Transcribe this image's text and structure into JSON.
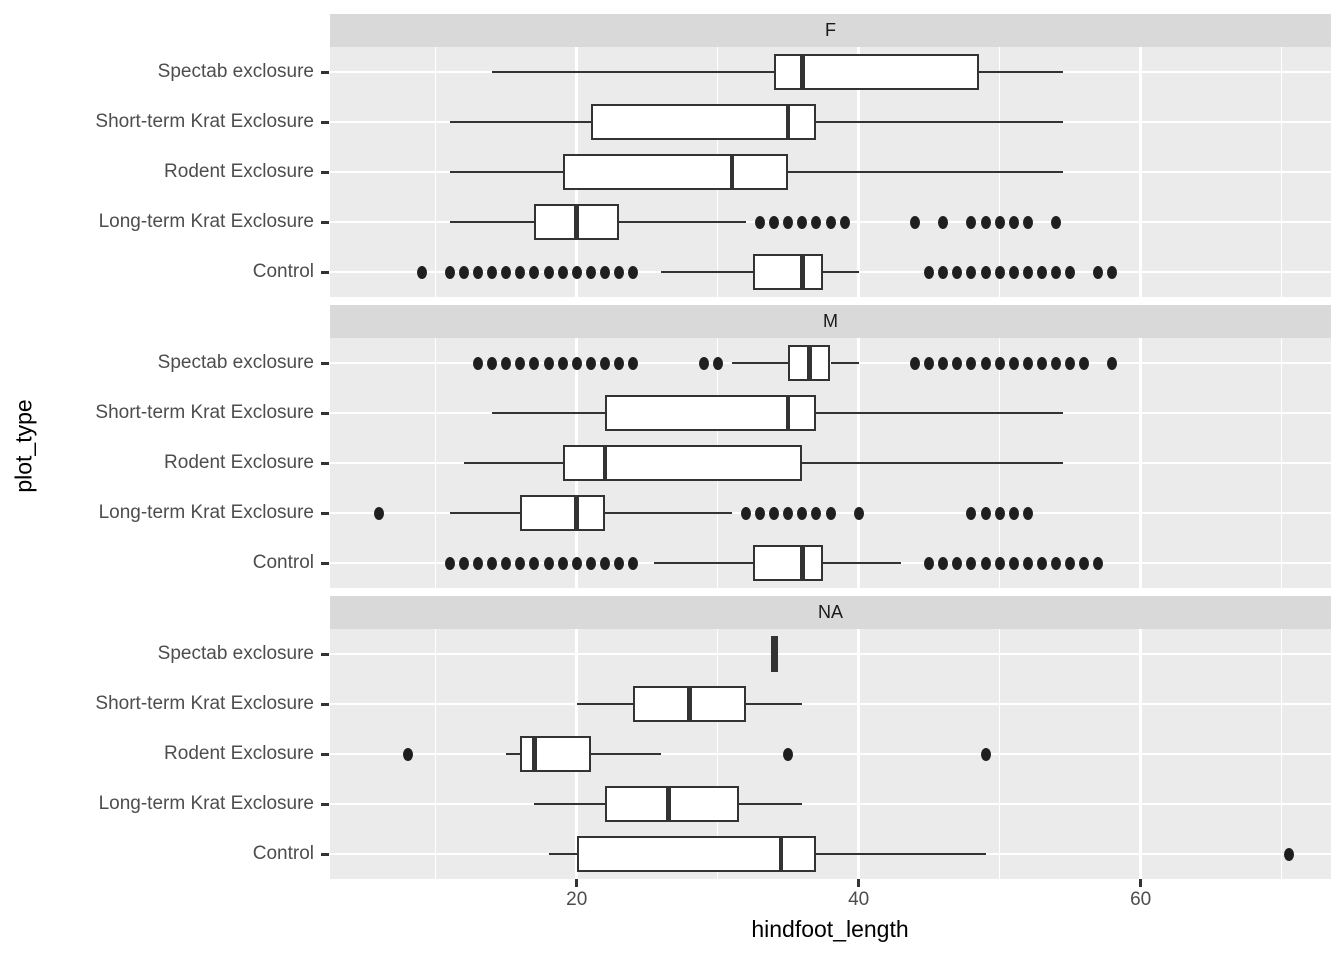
{
  "figure": {
    "x_axis_title": "hindfoot_length",
    "y_axis_title": "plot_type",
    "colors": {
      "panel_background": "#ebebeb",
      "strip_background": "#d9d9d9",
      "gridline": "#ffffff",
      "box_stroke": "#333333",
      "box_fill": "#ffffff",
      "outlier": "#1f1f1f",
      "axis_text": "#4d4d4d",
      "strip_text": "#1a1a1a"
    }
  },
  "chart_data": {
    "type": "boxplot",
    "orientation": "horizontal",
    "title": "",
    "xlabel": "hindfoot_length",
    "ylabel": "plot_type",
    "x_ticks": [
      20,
      40,
      60
    ],
    "x_minor_gridlines": [
      10,
      30,
      50,
      70
    ],
    "x_domain": [
      2.5,
      73.5
    ],
    "grid": "on",
    "legend": "none",
    "categories_top_to_bottom": [
      "Spectab exclosure",
      "Short-term Krat Exclosure",
      "Rodent Exclosure",
      "Long-term Krat Exclosure",
      "Control"
    ],
    "facets": [
      {
        "label": "F",
        "rows": [
          {
            "category": "Spectab exclosure",
            "min": 14,
            "q1": 34,
            "median": 36,
            "q3": 48.5,
            "max": 54.5,
            "outliers": []
          },
          {
            "category": "Short-term Krat Exclosure",
            "min": 11,
            "q1": 21,
            "median": 35,
            "q3": 37,
            "max": 54.5,
            "outliers": []
          },
          {
            "category": "Rodent Exclosure",
            "min": 11,
            "q1": 19,
            "median": 31,
            "q3": 35,
            "max": 54.5,
            "outliers": []
          },
          {
            "category": "Long-term Krat Exclosure",
            "min": 11,
            "q1": 17,
            "median": 20,
            "q3": 23,
            "max": 32,
            "outliers": [
              33,
              34,
              35,
              36,
              37,
              38,
              39,
              44,
              46,
              48,
              49,
              50,
              51,
              52,
              54
            ]
          },
          {
            "category": "Control",
            "min": 26,
            "q1": 32.5,
            "median": 36,
            "q3": 37.5,
            "max": 40,
            "outliers": [
              9,
              11,
              12,
              13,
              14,
              15,
              16,
              17,
              18,
              19,
              20,
              21,
              22,
              23,
              24,
              45,
              46,
              47,
              48,
              49,
              50,
              51,
              52,
              53,
              54,
              55,
              57,
              58
            ]
          }
        ]
      },
      {
        "label": "M",
        "rows": [
          {
            "category": "Spectab exclosure",
            "min": 31,
            "q1": 35,
            "median": 36.5,
            "q3": 38,
            "max": 40,
            "outliers": [
              13,
              14,
              15,
              16,
              17,
              18,
              19,
              20,
              21,
              22,
              23,
              24,
              29,
              30,
              44,
              45,
              46,
              47,
              48,
              49,
              50,
              51,
              52,
              53,
              54,
              55,
              56,
              58
            ]
          },
          {
            "category": "Short-term Krat Exclosure",
            "min": 14,
            "q1": 22,
            "median": 35,
            "q3": 37,
            "max": 54.5,
            "outliers": []
          },
          {
            "category": "Rodent Exclosure",
            "min": 12,
            "q1": 19,
            "median": 22,
            "q3": 36,
            "max": 54.5,
            "outliers": []
          },
          {
            "category": "Long-term Krat Exclosure",
            "min": 11,
            "q1": 16,
            "median": 20,
            "q3": 22,
            "max": 31,
            "outliers": [
              6,
              32,
              33,
              34,
              35,
              36,
              37,
              38,
              40,
              48,
              49,
              50,
              51,
              52
            ]
          },
          {
            "category": "Control",
            "min": 25.5,
            "q1": 32.5,
            "median": 36,
            "q3": 37.5,
            "max": 43,
            "outliers": [
              11,
              12,
              13,
              14,
              15,
              16,
              17,
              18,
              19,
              20,
              21,
              22,
              23,
              24,
              45,
              46,
              47,
              48,
              49,
              50,
              51,
              52,
              53,
              54,
              55,
              56,
              57
            ]
          }
        ]
      },
      {
        "label": "NA",
        "rows": [
          {
            "category": "Spectab exclosure",
            "min": 34,
            "q1": 34,
            "median": 34,
            "q3": 34,
            "max": 34,
            "outliers": []
          },
          {
            "category": "Short-term Krat Exclosure",
            "min": 20,
            "q1": 24,
            "median": 28,
            "q3": 32,
            "max": 36,
            "outliers": []
          },
          {
            "category": "Rodent Exclosure",
            "min": 15,
            "q1": 16,
            "median": 17,
            "q3": 21,
            "max": 26,
            "outliers": [
              8,
              35,
              49
            ]
          },
          {
            "category": "Long-term Krat Exclosure",
            "min": 17,
            "q1": 22,
            "median": 26.5,
            "q3": 31.5,
            "max": 36,
            "outliers": []
          },
          {
            "category": "Control",
            "min": 18,
            "q1": 20,
            "median": 34.5,
            "q3": 37,
            "max": 49,
            "outliers": [
              70.5
            ]
          }
        ]
      }
    ]
  }
}
